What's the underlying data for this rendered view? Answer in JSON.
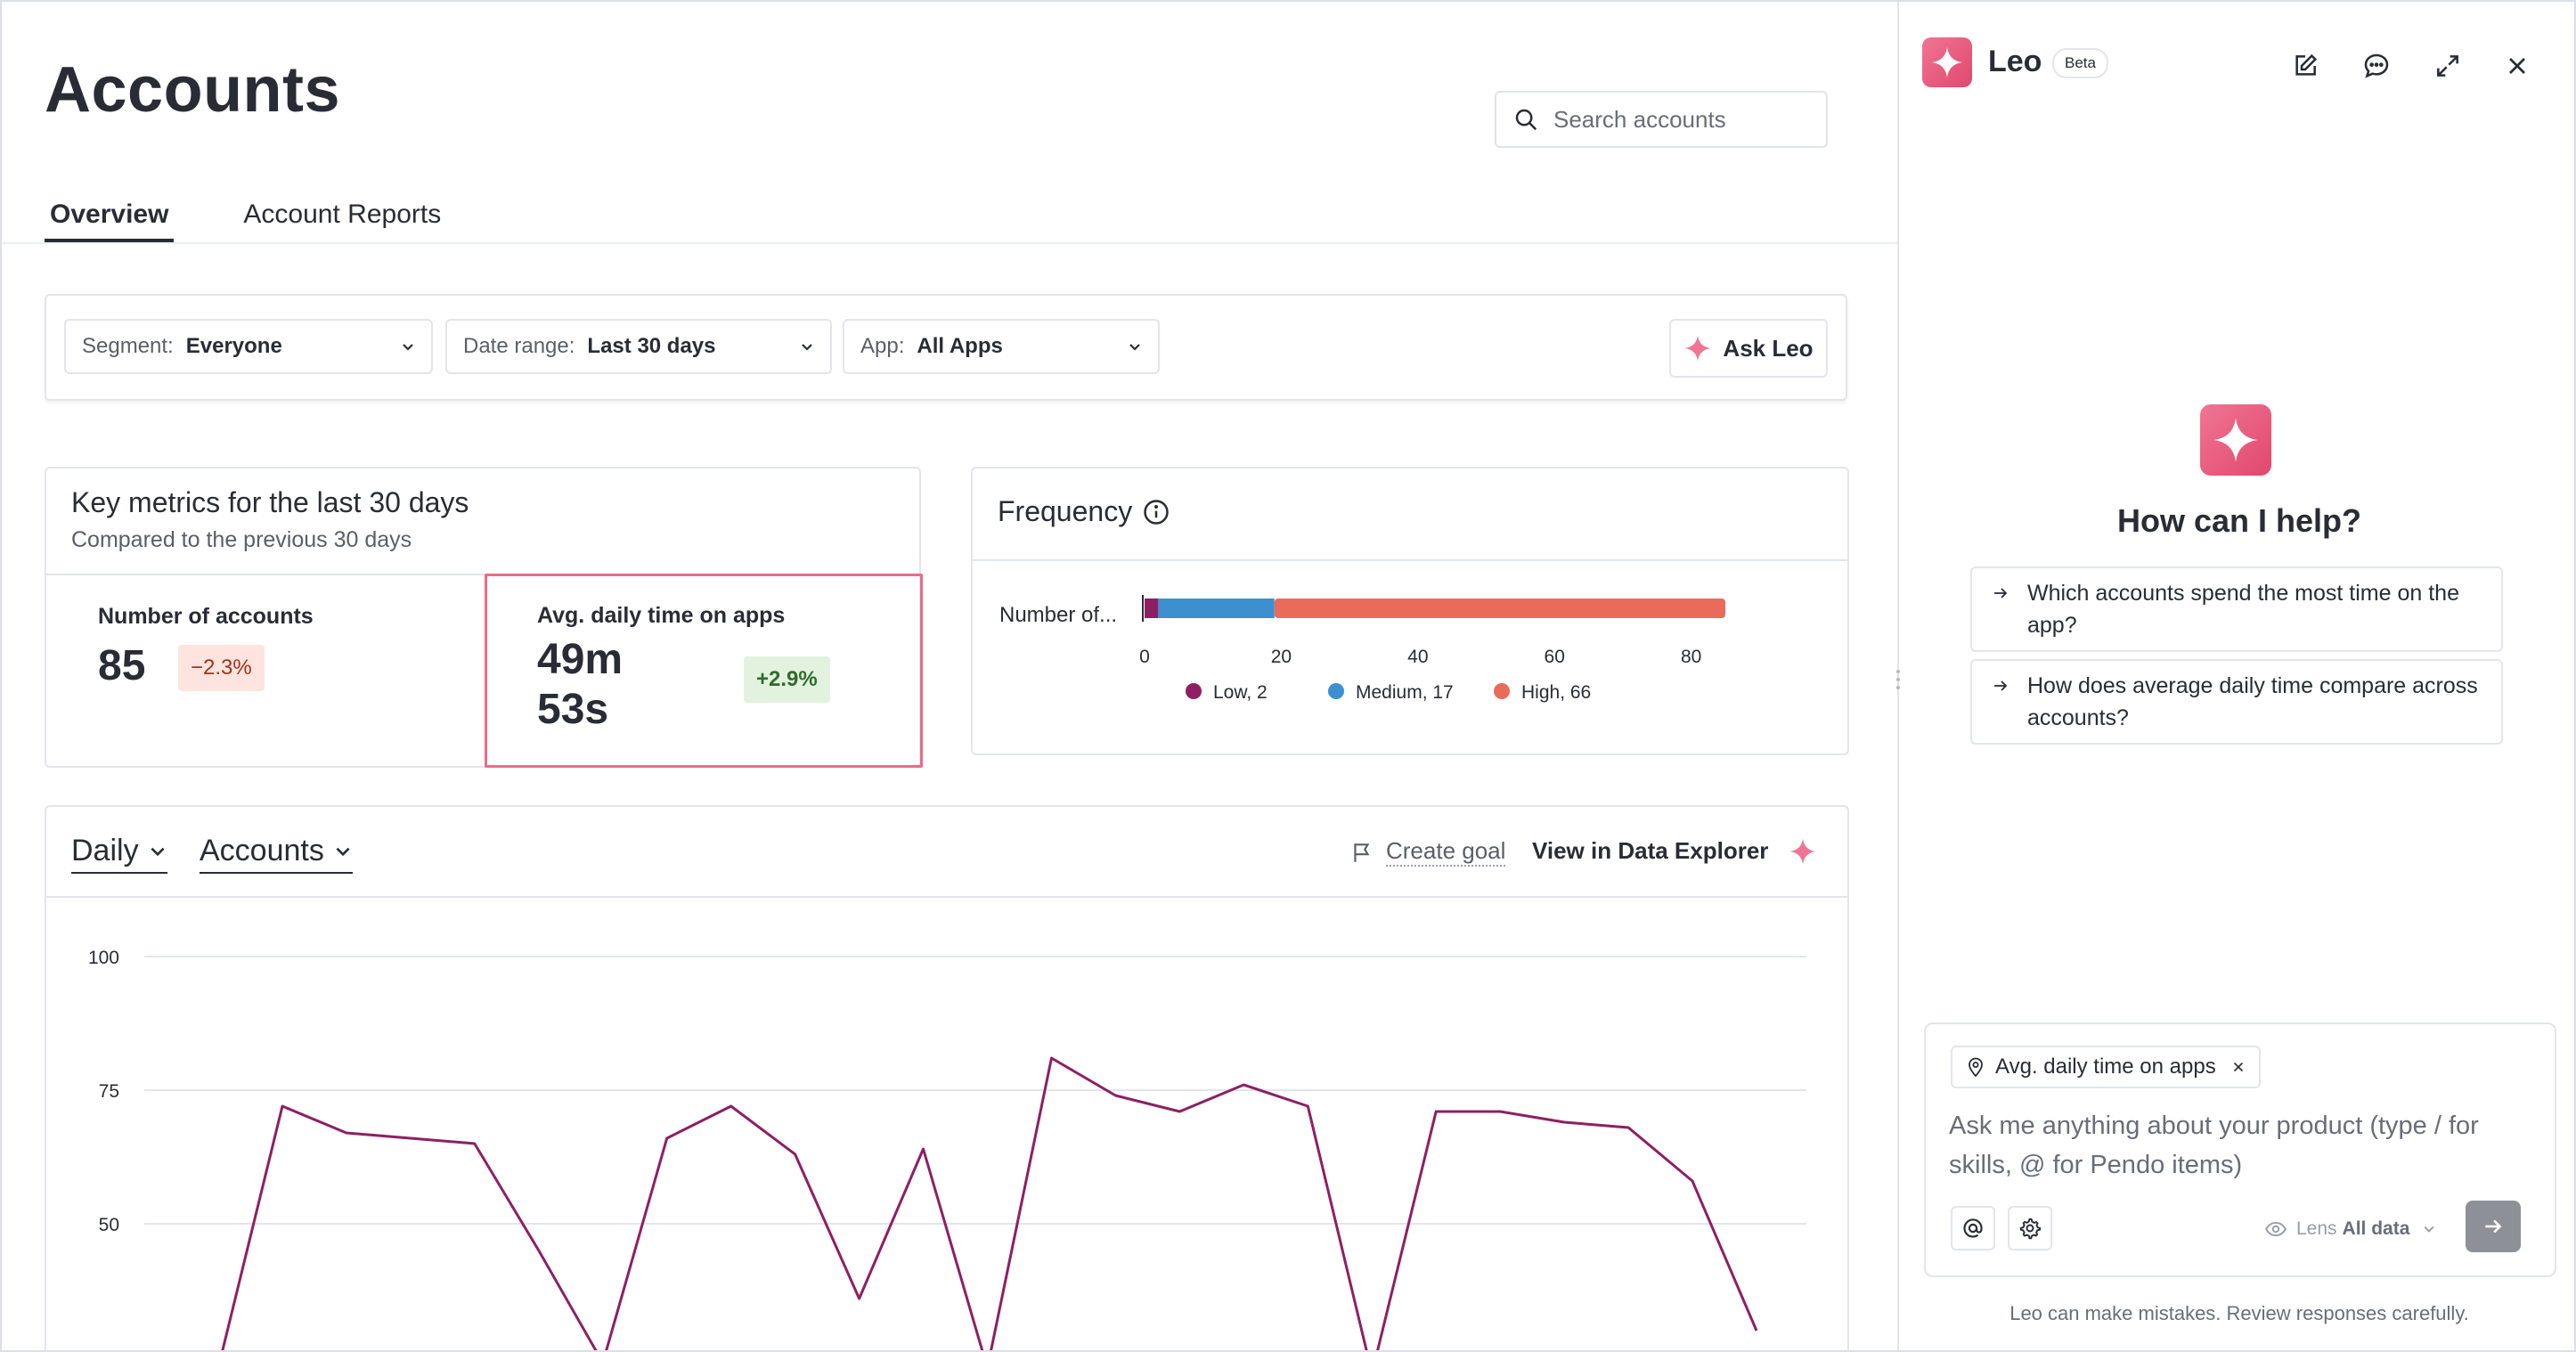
{
  "page": {
    "title": "Accounts",
    "search_placeholder": "Search accounts",
    "tabs": [
      {
        "label": "Overview",
        "active": true
      },
      {
        "label": "Account Reports",
        "active": false
      }
    ]
  },
  "filters": {
    "segment": {
      "label": "Segment:",
      "value": "Everyone"
    },
    "date_range": {
      "label": "Date range:",
      "value": "Last 30 days"
    },
    "app": {
      "label": "App:",
      "value": "All Apps"
    },
    "ask_leo_label": "Ask Leo"
  },
  "key_metrics": {
    "title": "Key metrics for the last 30 days",
    "subtitle": "Compared to the previous 30 days",
    "metrics": [
      {
        "label": "Number of accounts",
        "value": "85",
        "change": "−2.3%",
        "trend": "negative"
      },
      {
        "label": "Avg. daily time on apps",
        "value_line1": "49m",
        "value_line2": "53s",
        "change": "+2.9%",
        "trend": "positive",
        "selected": true
      }
    ]
  },
  "frequency": {
    "title": "Frequency",
    "chart_data": {
      "type": "bar",
      "orientation": "horizontal",
      "stacked": true,
      "categories": [
        "Number of..."
      ],
      "series": [
        {
          "name": "Low",
          "values": [
            2
          ],
          "color": "#8e1f63"
        },
        {
          "name": "Medium",
          "values": [
            17
          ],
          "color": "#3d8fcf"
        },
        {
          "name": "High",
          "values": [
            66
          ],
          "color": "#ea6b5a"
        }
      ],
      "legend": [
        "Low, 2",
        "Medium, 17",
        "High, 66"
      ],
      "xticks": [
        "0",
        "20",
        "40",
        "60",
        "80"
      ],
      "xlim": [
        0,
        85
      ],
      "legend_position": "bottom"
    }
  },
  "trend": {
    "interval": "Daily",
    "metric": "Accounts",
    "create_goal_label": "Create goal",
    "view_data_explorer_label": "View in Data Explorer",
    "chart_data": {
      "type": "line",
      "series_color": "#8e1f63",
      "yticks": [
        "100",
        "75",
        "50"
      ],
      "ylim": [
        20,
        100
      ],
      "grid": true,
      "values": [
        23,
        72,
        67,
        66,
        65,
        45,
        24,
        66,
        72,
        63,
        36,
        64,
        23,
        81,
        74,
        71,
        76,
        72,
        22,
        71,
        71,
        69,
        68,
        58,
        30
      ]
    }
  },
  "leo": {
    "name": "Leo",
    "beta_label": "Beta",
    "help_title": "How can I help?",
    "suggestions": [
      "Which accounts spend the most time on the app?",
      "How does average daily time compare across accounts?"
    ],
    "context_chip": "Avg. daily time on apps",
    "input_placeholder": "Ask me anything about your product (type / for skills, @ for Pendo items)",
    "lens_label": "Lens",
    "lens_value": "All data",
    "disclaimer": "Leo can make mistakes. Review responses carefully.",
    "brand_colors": {
      "gradient_start": "#f07594",
      "gradient_end": "#e0486e"
    }
  }
}
